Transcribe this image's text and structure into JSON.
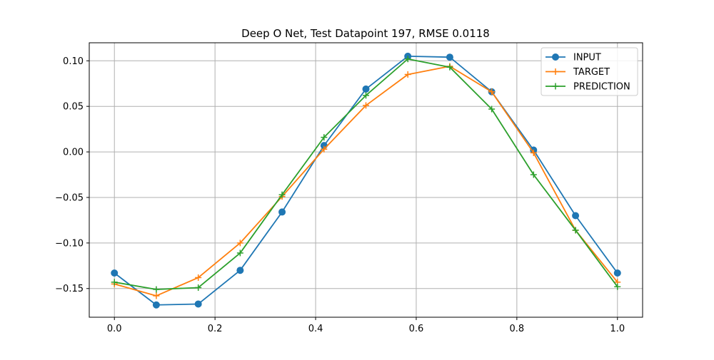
{
  "chart_data": {
    "type": "line",
    "title": "Deep O Net, Test Datapoint 197, RMSE 0.0118",
    "xlabel": "",
    "ylabel": "",
    "xlim": [
      -0.05,
      1.05
    ],
    "ylim": [
      -0.1815,
      0.1198
    ],
    "xticks": [
      0.0,
      0.2,
      0.4,
      0.6,
      0.8,
      1.0
    ],
    "xtick_labels": [
      "0.0",
      "0.2",
      "0.4",
      "0.6",
      "0.8",
      "1.0"
    ],
    "yticks": [
      -0.15,
      -0.1,
      -0.05,
      0.0,
      0.05,
      0.1
    ],
    "ytick_labels": [
      "−0.15",
      "−0.10",
      "−0.05",
      "0.00",
      "0.05",
      "0.10"
    ],
    "grid": true,
    "legend_position": "upper right",
    "x": [
      0.0,
      0.0833,
      0.1667,
      0.25,
      0.3333,
      0.4167,
      0.5,
      0.5833,
      0.6667,
      0.75,
      0.8333,
      0.9167,
      1.0
    ],
    "series": [
      {
        "name": "INPUT",
        "color": "#1f77b4",
        "marker": "circle",
        "values": [
          -0.133,
          -0.168,
          -0.167,
          -0.13,
          -0.066,
          0.007,
          0.069,
          0.105,
          0.104,
          0.066,
          0.002,
          -0.07,
          -0.133
        ]
      },
      {
        "name": "TARGET",
        "color": "#ff7f0e",
        "marker": "plus",
        "values": [
          -0.145,
          -0.158,
          -0.138,
          -0.1,
          -0.049,
          0.003,
          0.051,
          0.085,
          0.094,
          0.066,
          -0.001,
          -0.086,
          -0.143
        ]
      },
      {
        "name": "PREDICTION",
        "color": "#2ca02c",
        "marker": "plus",
        "values": [
          -0.143,
          -0.151,
          -0.149,
          -0.111,
          -0.047,
          0.016,
          0.062,
          0.102,
          0.093,
          0.047,
          -0.025,
          -0.086,
          -0.148
        ]
      }
    ]
  }
}
